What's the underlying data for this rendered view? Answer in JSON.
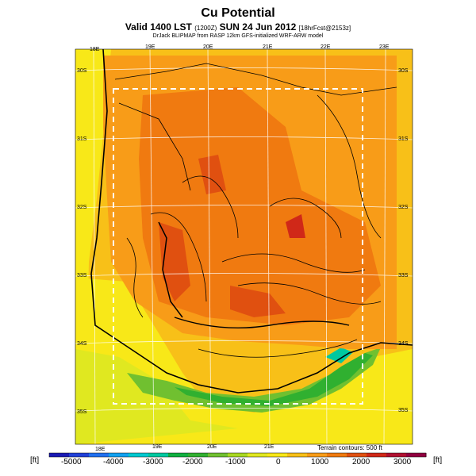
{
  "title": "Cu Potential",
  "valid_line": {
    "prefix": "Valid 1400 LST",
    "small1": "(1200Z)",
    "main": "SUN 24 Jun 2012",
    "small2": "[18hrFcst@2153z]"
  },
  "source_line": "DrJack BLIPMAP from RASP 12km GFS-initialized WRF-ARW model",
  "map": {
    "lon_labels_top": [
      "18E",
      "19E",
      "20E",
      "21E",
      "22E",
      "23E"
    ],
    "lon_labels_bottom": [
      "18E",
      "19E",
      "20E",
      "21E"
    ],
    "lat_labels_left": [
      "30S",
      "31S",
      "32S",
      "33S",
      "34S",
      "35S"
    ],
    "lat_labels_right": [
      "30S",
      "31S",
      "32S",
      "33S",
      "34S",
      "35S"
    ],
    "terrain_note": "Terrain contours: 500 ft"
  },
  "colorbar": {
    "unit": "[ft]",
    "ticks": [
      "-5000",
      "-4000",
      "-3000",
      "-2000",
      "-1000",
      "0",
      "1000",
      "2000",
      "3000"
    ],
    "colors": [
      "#1a1ab4",
      "#2040d8",
      "#2070f0",
      "#10a0f0",
      "#00c8d0",
      "#00c8a0",
      "#10b040",
      "#30b030",
      "#70c030",
      "#a8d820",
      "#e0e820",
      "#f8e818",
      "#f8c018",
      "#f89c18",
      "#f07a10",
      "#e05010",
      "#d02818",
      "#b01030",
      "#900040"
    ]
  }
}
